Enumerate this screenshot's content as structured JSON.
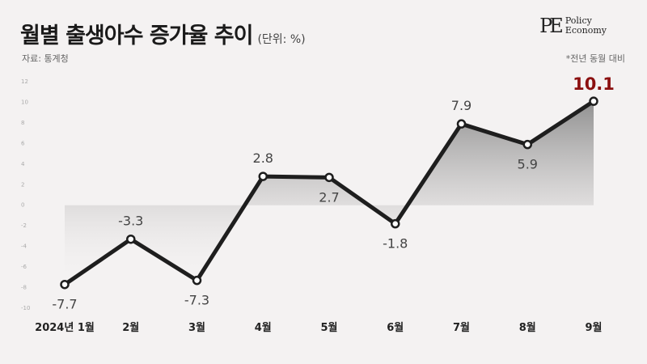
{
  "header": {
    "title": "월별 출생아수 증가율 추이",
    "unit": "(단위: %)",
    "source": "자료: 통계청",
    "note": "*전년 동월 대비"
  },
  "logo": {
    "mark": "PE",
    "line1": "Policy",
    "line2": "Economy"
  },
  "colors": {
    "line": "#1e1e1e",
    "highlight": "#8b1010",
    "label": "#444444",
    "fill_top": "#8c8c8c"
  },
  "chart_data": {
    "type": "area",
    "title": "월별 출생아수 증가율 추이",
    "categories": [
      "2024년 1월",
      "2월",
      "3월",
      "4월",
      "5월",
      "6월",
      "7월",
      "8월",
      "9월"
    ],
    "values": [
      -7.7,
      -3.3,
      -7.3,
      2.8,
      2.7,
      -1.8,
      7.9,
      5.9,
      10.1
    ],
    "data_labels": [
      "-7.7",
      "-3.3",
      "-7.3",
      "2.8",
      "2.7",
      "-1.8",
      "7.9",
      "5.9",
      "10.1"
    ],
    "yticks": [
      12,
      10,
      8,
      6,
      4,
      2,
      0,
      -2,
      -4,
      -6,
      -8,
      -10
    ],
    "ylim": [
      -10,
      12
    ],
    "highlight_last": true
  }
}
